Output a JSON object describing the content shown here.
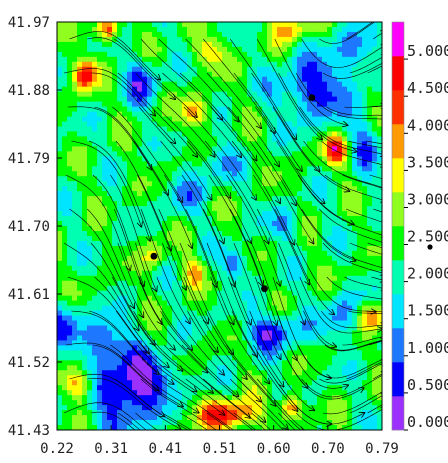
{
  "chart_data": {
    "type": "heatmap",
    "title": "",
    "xlabel": "",
    "ylabel": "",
    "x_ticks": [
      "0.22",
      "0.31",
      "0.41",
      "0.51",
      "0.60",
      "0.70",
      "0.79"
    ],
    "y_ticks": [
      "41.97",
      "41.88",
      "41.79",
      "41.70",
      "41.61",
      "41.52",
      "41.43"
    ],
    "xlim": [
      0.22,
      0.79
    ],
    "ylim": [
      41.43,
      41.97
    ],
    "grid": false,
    "overlay": "streamlines",
    "colorbar": {
      "min": 0.0,
      "max": 5.5,
      "step": 0.5,
      "tick_labels": [
        "0.000",
        "0.500",
        "1.000",
        "1.500",
        "2.000",
        "2.500",
        "3.000",
        "3.500",
        "4.000",
        "4.500",
        "5.000"
      ],
      "colors": [
        "#9b30ff",
        "#0000ff",
        "#1e78ff",
        "#00e5ff",
        "#00ffb0",
        "#00ff00",
        "#90ff20",
        "#ffff00",
        "#ff9a00",
        "#ff3000",
        "#ff0000",
        "#ff00ff"
      ]
    },
    "markers": [
      {
        "x": 0.39,
        "y": 41.66
      },
      {
        "x": 0.584,
        "y": 41.617
      },
      {
        "x": 0.667,
        "y": 41.87
      }
    ]
  }
}
